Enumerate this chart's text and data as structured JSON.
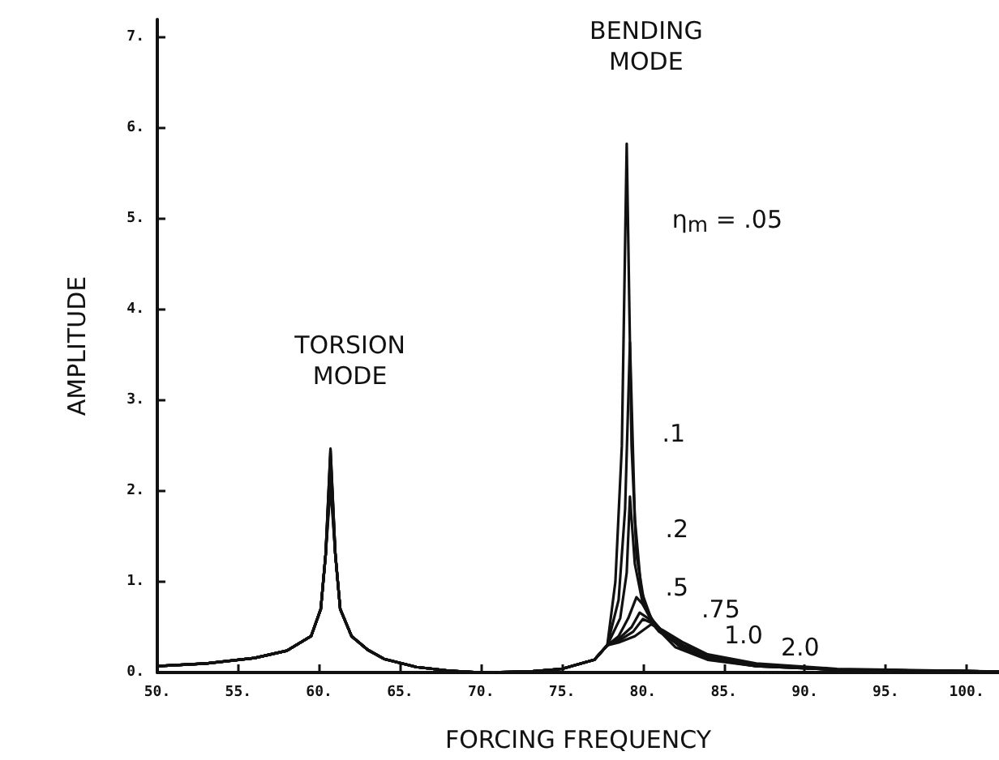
{
  "chart_data": {
    "type": "line",
    "xlabel": "FORCING FREQUENCY",
    "ylabel": "AMPLITUDE",
    "xlim": [
      50,
      102
    ],
    "ylim": [
      0,
      7.2
    ],
    "xticks": [
      {
        "value": 50,
        "label": "50."
      },
      {
        "value": 55,
        "label": "55."
      },
      {
        "value": 60,
        "label": "60."
      },
      {
        "value": 65,
        "label": "65."
      },
      {
        "value": 70,
        "label": "70."
      },
      {
        "value": 75,
        "label": "75."
      },
      {
        "value": 80,
        "label": "80."
      },
      {
        "value": 85,
        "label": "85."
      },
      {
        "value": 90,
        "label": "90."
      },
      {
        "value": 95,
        "label": "95."
      },
      {
        "value": 100,
        "label": "100."
      }
    ],
    "yticks": [
      {
        "value": 0,
        "label": "0."
      },
      {
        "value": 1,
        "label": "1."
      },
      {
        "value": 2,
        "label": "2."
      },
      {
        "value": 3,
        "label": "3."
      },
      {
        "value": 4,
        "label": "4."
      },
      {
        "value": 5,
        "label": "5."
      },
      {
        "value": 6,
        "label": "6."
      },
      {
        "value": 7,
        "label": "7."
      }
    ],
    "grid": false,
    "legend": false,
    "marker": "none",
    "line_style": "solid",
    "series": [
      {
        "name": "η$_{m}$ = .05",
        "color": "#111111",
        "x": [
          50,
          53,
          56,
          58,
          59.5,
          60.1,
          60.4,
          60.7,
          61.0,
          61.3,
          62,
          63,
          64,
          66,
          68,
          70,
          73,
          75,
          77,
          77.8,
          78.3,
          78.7,
          79.0,
          79.3,
          79.6,
          80.1,
          80.8,
          82,
          84,
          87,
          92,
          102
        ],
        "values": [
          0.07,
          0.1,
          0.16,
          0.24,
          0.4,
          0.7,
          1.3,
          2.47,
          1.3,
          0.7,
          0.4,
          0.25,
          0.15,
          0.06,
          0.02,
          0,
          0.01,
          0.04,
          0.14,
          0.3,
          1.0,
          2.5,
          5.83,
          2.5,
          1.3,
          0.75,
          0.5,
          0.28,
          0.14,
          0.07,
          0.03,
          0.01
        ]
      },
      {
        "name": ".1",
        "color": "#111111",
        "x": [
          50,
          53,
          56,
          58,
          59.5,
          60.1,
          60.4,
          60.7,
          61.0,
          61.3,
          62,
          63,
          64,
          66,
          68,
          70,
          73,
          75,
          77,
          77.8,
          78.5,
          78.9,
          79.2,
          79.5,
          79.9,
          80.5,
          81.2,
          82.3,
          84,
          87,
          92,
          102
        ],
        "values": [
          0.07,
          0.1,
          0.16,
          0.24,
          0.4,
          0.7,
          1.3,
          2.45,
          1.3,
          0.7,
          0.4,
          0.25,
          0.15,
          0.06,
          0.02,
          0,
          0.01,
          0.04,
          0.14,
          0.3,
          0.8,
          1.8,
          3.64,
          1.7,
          0.9,
          0.6,
          0.45,
          0.28,
          0.15,
          0.07,
          0.03,
          0.01
        ]
      },
      {
        "name": ".2",
        "color": "#111111",
        "x": [
          50,
          53,
          56,
          58,
          59.5,
          60.1,
          60.4,
          60.7,
          61.0,
          61.3,
          62,
          63,
          64,
          66,
          68,
          70,
          73,
          75,
          77,
          77.8,
          78.6,
          79.0,
          79.2,
          79.5,
          80.0,
          80.7,
          81.5,
          82.5,
          84,
          87,
          92,
          102
        ],
        "values": [
          0.07,
          0.1,
          0.16,
          0.24,
          0.4,
          0.7,
          1.3,
          2.4,
          1.3,
          0.7,
          0.4,
          0.25,
          0.15,
          0.06,
          0.02,
          0,
          0.01,
          0.04,
          0.14,
          0.3,
          0.6,
          1.1,
          1.94,
          1.2,
          0.75,
          0.55,
          0.4,
          0.27,
          0.16,
          0.07,
          0.03,
          0.01
        ]
      },
      {
        "name": ".5",
        "color": "#111111",
        "x": [
          50,
          53,
          56,
          58,
          59.5,
          60.1,
          60.4,
          60.7,
          61.0,
          61.3,
          62,
          63,
          64,
          66,
          68,
          70,
          73,
          75,
          77,
          77.8,
          78.5,
          79.1,
          79.6,
          80.0,
          80.5,
          81.3,
          82.5,
          84,
          87,
          92,
          102
        ],
        "values": [
          0.07,
          0.1,
          0.16,
          0.24,
          0.4,
          0.7,
          1.3,
          2.3,
          1.3,
          0.7,
          0.4,
          0.25,
          0.15,
          0.06,
          0.02,
          0,
          0.01,
          0.04,
          0.14,
          0.3,
          0.4,
          0.6,
          0.83,
          0.75,
          0.58,
          0.42,
          0.27,
          0.17,
          0.08,
          0.03,
          0.01
        ]
      },
      {
        "name": ".75",
        "color": "#111111",
        "x": [
          50,
          53,
          56,
          58,
          59.5,
          60.1,
          60.4,
          60.7,
          61.0,
          61.3,
          62,
          63,
          64,
          66,
          68,
          70,
          73,
          75,
          77,
          77.8,
          78.5,
          79.3,
          79.8,
          80.3,
          81,
          82.5,
          84,
          87,
          92,
          102
        ],
        "values": [
          0.07,
          0.1,
          0.16,
          0.24,
          0.4,
          0.7,
          1.3,
          2.2,
          1.3,
          0.7,
          0.4,
          0.25,
          0.15,
          0.06,
          0.02,
          0,
          0.01,
          0.04,
          0.14,
          0.3,
          0.37,
          0.5,
          0.66,
          0.6,
          0.45,
          0.28,
          0.18,
          0.08,
          0.03,
          0.01
        ]
      },
      {
        "name": "1.0",
        "color": "#111111",
        "x": [
          50,
          53,
          56,
          58,
          59.5,
          60.1,
          60.4,
          60.7,
          61.0,
          61.3,
          62,
          63,
          64,
          66,
          68,
          70,
          73,
          75,
          77,
          77.8,
          78.5,
          79.4,
          80.0,
          80.5,
          81.2,
          82.5,
          84,
          87,
          92,
          102
        ],
        "values": [
          0.07,
          0.1,
          0.16,
          0.24,
          0.4,
          0.7,
          1.3,
          2.15,
          1.3,
          0.7,
          0.4,
          0.25,
          0.15,
          0.06,
          0.02,
          0,
          0.01,
          0.04,
          0.14,
          0.3,
          0.35,
          0.45,
          0.59,
          0.55,
          0.45,
          0.3,
          0.19,
          0.09,
          0.03,
          0.01
        ]
      },
      {
        "name": "2.0",
        "color": "#111111",
        "x": [
          50,
          53,
          56,
          58,
          59.5,
          60.1,
          60.4,
          60.7,
          61.0,
          61.3,
          62,
          63,
          64,
          66,
          68,
          70,
          73,
          75,
          77,
          77.8,
          78.5,
          79.5,
          80.5,
          81.2,
          82.5,
          84,
          87,
          92,
          102
        ],
        "values": [
          0.07,
          0.1,
          0.16,
          0.24,
          0.4,
          0.7,
          1.3,
          2.05,
          1.3,
          0.7,
          0.4,
          0.25,
          0.15,
          0.06,
          0.02,
          0,
          0.01,
          0.04,
          0.14,
          0.3,
          0.33,
          0.4,
          0.53,
          0.47,
          0.33,
          0.2,
          0.1,
          0.04,
          0.01
        ]
      }
    ],
    "annotations": [
      "TORSION\nMODE",
      "BENDING\nMODE"
    ]
  }
}
